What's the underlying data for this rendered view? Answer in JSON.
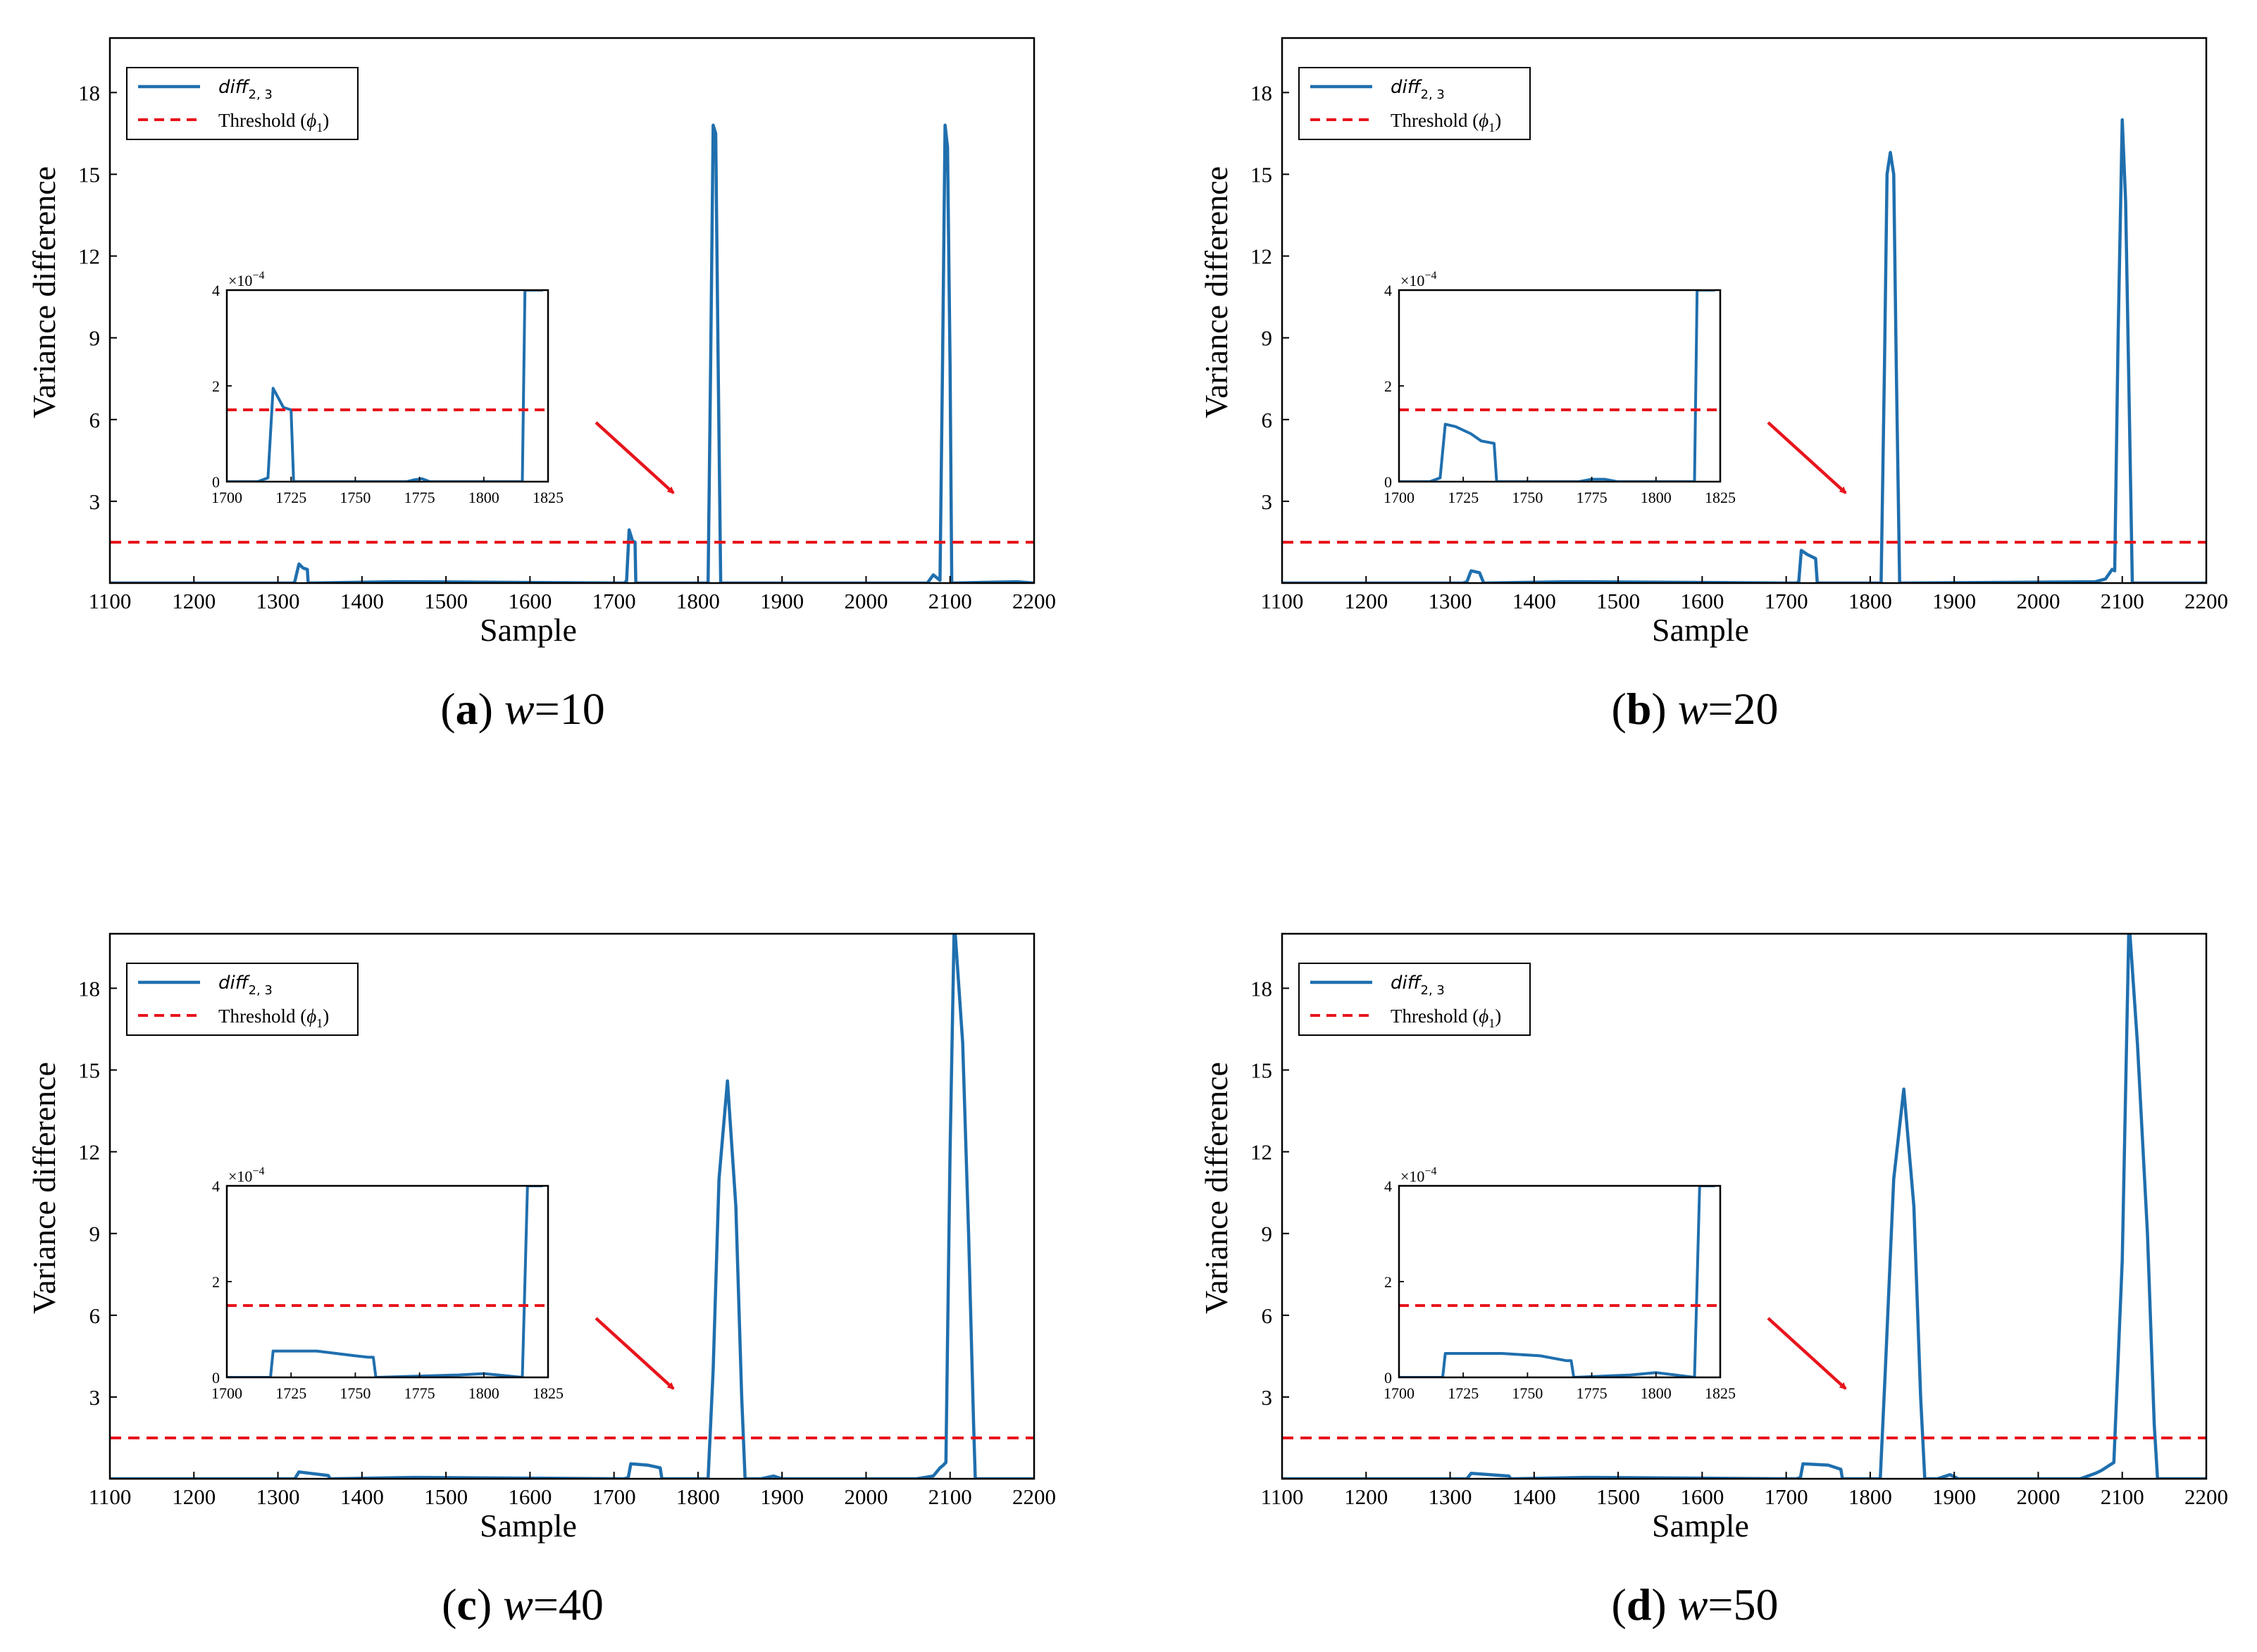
{
  "figure": {
    "panels": [
      {
        "id": "a",
        "caption_letter": "a",
        "caption_var": "w",
        "caption_value": "=10"
      },
      {
        "id": "b",
        "caption_letter": "b",
        "caption_var": "w",
        "caption_value": "=20"
      },
      {
        "id": "c",
        "caption_letter": "c",
        "caption_var": "w",
        "caption_value": "=40"
      },
      {
        "id": "d",
        "caption_letter": "d",
        "caption_var": "w",
        "caption_value": "=50"
      }
    ]
  },
  "colors": {
    "series": "#1f6fae",
    "threshold": "#e8141c",
    "arrow": "#e8141c"
  },
  "chart_data": [
    {
      "type": "line",
      "panel": "a",
      "xlabel": "Sample",
      "ylabel": "Variance difference",
      "xlim": [
        1100,
        2200
      ],
      "ylim": [
        0,
        20
      ],
      "xticks": [
        "1100",
        "1200",
        "1300",
        "1400",
        "1500",
        "1600",
        "1700",
        "1800",
        "1900",
        "2000",
        "2100",
        "2200"
      ],
      "yticks": [
        "3",
        "6",
        "9",
        "12",
        "15",
        "18"
      ],
      "legend": {
        "placement": "top-left",
        "series_label": "diff",
        "series_sub": "2, 3",
        "threshold_label": "Threshold (",
        "threshold_sym": "ϕ",
        "threshold_sub": "1",
        "threshold_close": ")"
      },
      "threshold": 1.5,
      "series": {
        "name": "diff2,3",
        "x": [
          1100,
          1318,
          1320,
          1325,
          1330,
          1335,
          1336,
          1440,
          1460,
          1712,
          1715,
          1718,
          1722,
          1725,
          1726,
          1812,
          1815,
          1818,
          1821,
          1824,
          1827,
          2073,
          2080,
          2088,
          2091,
          2094,
          2097,
          2100,
          2102,
          2180,
          2200
        ],
        "y": [
          0,
          0,
          0.05,
          0.7,
          0.55,
          0.5,
          0,
          0.05,
          0.05,
          0,
          0.08,
          1.95,
          1.55,
          1.5,
          0,
          0,
          8,
          16.8,
          16.5,
          8,
          0,
          0,
          0.3,
          0.1,
          8,
          16.8,
          16,
          8,
          0,
          0.05,
          0
        ]
      },
      "inset": {
        "xlim": [
          1700,
          1825
        ],
        "ylim": [
          0,
          4
        ],
        "exponent": "−4",
        "xticks": [
          "1700",
          "1725",
          "1750",
          "1775",
          "1800",
          "1825"
        ],
        "yticks": [
          "0",
          "2",
          "4"
        ],
        "threshold": 1.5,
        "series": {
          "x": [
            1700,
            1712,
            1716,
            1718,
            1722,
            1725,
            1726,
            1770,
            1773,
            1776,
            1779,
            1815,
            1816,
            1817,
            1822,
            1823
          ],
          "y": [
            0,
            0,
            0.08,
            1.95,
            1.55,
            1.5,
            0,
            0,
            0.04,
            0.06,
            0,
            0,
            4,
            4,
            4,
            4
          ]
        }
      }
    },
    {
      "type": "line",
      "panel": "b",
      "xlabel": "Sample",
      "ylabel": "Variance difference",
      "xlim": [
        1100,
        2200
      ],
      "ylim": [
        0,
        20
      ],
      "xticks": [
        "1100",
        "1200",
        "1300",
        "1400",
        "1500",
        "1600",
        "1700",
        "1800",
        "1900",
        "2000",
        "2100",
        "2200"
      ],
      "yticks": [
        "3",
        "6",
        "9",
        "12",
        "15",
        "18"
      ],
      "legend": {
        "placement": "top-left",
        "series_label": "diff",
        "series_sub": "2, 3",
        "threshold_label": "Threshold (",
        "threshold_sym": "ϕ",
        "threshold_sub": "1",
        "threshold_close": ")"
      },
      "threshold": 1.5,
      "series": {
        "name": "diff2,3",
        "x": [
          1100,
          1315,
          1320,
          1325,
          1335,
          1340,
          1440,
          1460,
          1712,
          1715,
          1718,
          1725,
          1735,
          1737,
          1740,
          1813,
          1817,
          1820,
          1824,
          1828,
          1831,
          1835,
          2068,
          2080,
          2088,
          2091,
          2095,
          2100,
          2104,
          2108,
          2112,
          2200
        ],
        "y": [
          0,
          0,
          0.05,
          0.45,
          0.38,
          0,
          0.05,
          0.05,
          0,
          0.05,
          1.2,
          1.05,
          0.9,
          0,
          0,
          0,
          8,
          15,
          15.8,
          15,
          8,
          0,
          0.05,
          0.15,
          0.5,
          0.45,
          9,
          17,
          14,
          7,
          0,
          0
        ]
      },
      "inset": {
        "xlim": [
          1700,
          1825
        ],
        "ylim": [
          0,
          4
        ],
        "exponent": "−4",
        "xticks": [
          "1700",
          "1725",
          "1750",
          "1775",
          "1800",
          "1825"
        ],
        "yticks": [
          "0",
          "2",
          "4"
        ],
        "threshold": 1.5,
        "series": {
          "x": [
            1700,
            1712,
            1716,
            1718,
            1722,
            1728,
            1732,
            1737,
            1738,
            1770,
            1775,
            1780,
            1785,
            1815,
            1816,
            1817,
            1823
          ],
          "y": [
            0,
            0,
            0.08,
            1.2,
            1.15,
            1,
            0.85,
            0.8,
            0,
            0,
            0.05,
            0.05,
            0,
            0,
            4,
            4,
            4
          ]
        }
      }
    },
    {
      "type": "line",
      "panel": "c",
      "xlabel": "Sample",
      "ylabel": "Variance difference",
      "xlim": [
        1100,
        2200
      ],
      "ylim": [
        0,
        20
      ],
      "xticks": [
        "1100",
        "1200",
        "1300",
        "1400",
        "1500",
        "1600",
        "1700",
        "1800",
        "1900",
        "2000",
        "2100",
        "2200"
      ],
      "yticks": [
        "3",
        "6",
        "9",
        "12",
        "15",
        "18"
      ],
      "legend": {
        "placement": "top-left",
        "series_label": "diff",
        "series_sub": "2, 3",
        "threshold_label": "Threshold (",
        "threshold_sym": "ϕ",
        "threshold_sub": "1",
        "threshold_close": ")"
      },
      "threshold": 1.5,
      "series": {
        "name": "diff2,3",
        "x": [
          1100,
          1320,
          1325,
          1360,
          1362,
          1460,
          1470,
          1712,
          1717,
          1720,
          1740,
          1755,
          1757,
          1812,
          1818,
          1825,
          1835,
          1845,
          1852,
          1856,
          1875,
          1890,
          1900,
          2060,
          2080,
          2088,
          2092,
          2095,
          2100,
          2105,
          2115,
          2122,
          2128,
          2130,
          2200
        ],
        "y": [
          0,
          0,
          0.25,
          0.12,
          0,
          0.05,
          0.05,
          0,
          0.05,
          0.55,
          0.5,
          0.4,
          0,
          0,
          4,
          11,
          14.6,
          10,
          3,
          0,
          0,
          0.1,
          0,
          0,
          0.1,
          0.4,
          0.5,
          0.6,
          12,
          20.5,
          16,
          9,
          2,
          0,
          0
        ]
      },
      "inset": {
        "xlim": [
          1700,
          1825
        ],
        "ylim": [
          0,
          4
        ],
        "exponent": "−4",
        "xticks": [
          "1700",
          "1725",
          "1750",
          "1775",
          "1800",
          "1825"
        ],
        "yticks": [
          "0",
          "2",
          "4"
        ],
        "threshold": 1.5,
        "series": {
          "x": [
            1700,
            1717,
            1718,
            1735,
            1750,
            1755,
            1757,
            1758,
            1790,
            1800,
            1815,
            1816,
            1817,
            1823
          ],
          "y": [
            0,
            0,
            0.55,
            0.55,
            0.45,
            0.42,
            0.42,
            0,
            0.05,
            0.08,
            0,
            2,
            4,
            4
          ]
        }
      }
    },
    {
      "type": "line",
      "panel": "d",
      "xlabel": "Sample",
      "ylabel": "Variance difference",
      "xlim": [
        1100,
        2200
      ],
      "ylim": [
        0,
        20
      ],
      "xticks": [
        "1100",
        "1200",
        "1300",
        "1400",
        "1500",
        "1600",
        "1700",
        "1800",
        "1900",
        "2000",
        "2100",
        "2200"
      ],
      "yticks": [
        "3",
        "6",
        "9",
        "12",
        "15",
        "18"
      ],
      "legend": {
        "placement": "top-left",
        "series_label": "diff",
        "series_sub": "2, 3",
        "threshold_label": "Threshold (",
        "threshold_sym": "ϕ",
        "threshold_sub": "1",
        "threshold_close": ")"
      },
      "threshold": 1.5,
      "series": {
        "name": "diff2,3",
        "x": [
          1100,
          1320,
          1325,
          1370,
          1372,
          1460,
          1470,
          1712,
          1717,
          1720,
          1750,
          1765,
          1767,
          1812,
          1818,
          1828,
          1840,
          1852,
          1860,
          1865,
          1880,
          1895,
          1905,
          2050,
          2068,
          2075,
          2090,
          2100,
          2108,
          2118,
          2130,
          2138,
          2142,
          2200
        ],
        "y": [
          0,
          0,
          0.2,
          0.1,
          0,
          0.05,
          0.05,
          0,
          0.05,
          0.55,
          0.5,
          0.35,
          0,
          0,
          4,
          11,
          14.3,
          10,
          3,
          0,
          0,
          0.15,
          0,
          0,
          0.2,
          0.3,
          0.6,
          8,
          20.5,
          16,
          9,
          2,
          0,
          0
        ]
      },
      "inset": {
        "xlim": [
          1700,
          1825
        ],
        "ylim": [
          0,
          4
        ],
        "exponent": "−4",
        "xticks": [
          "1700",
          "1725",
          "1750",
          "1775",
          "1800",
          "1825"
        ],
        "yticks": [
          "0",
          "2",
          "4"
        ],
        "threshold": 1.5,
        "series": {
          "x": [
            1700,
            1717,
            1718,
            1740,
            1755,
            1765,
            1767,
            1768,
            1790,
            1800,
            1815,
            1816,
            1817,
            1823
          ],
          "y": [
            0,
            0,
            0.5,
            0.5,
            0.45,
            0.35,
            0.35,
            0,
            0.05,
            0.1,
            0,
            2,
            4,
            4
          ]
        }
      }
    }
  ]
}
